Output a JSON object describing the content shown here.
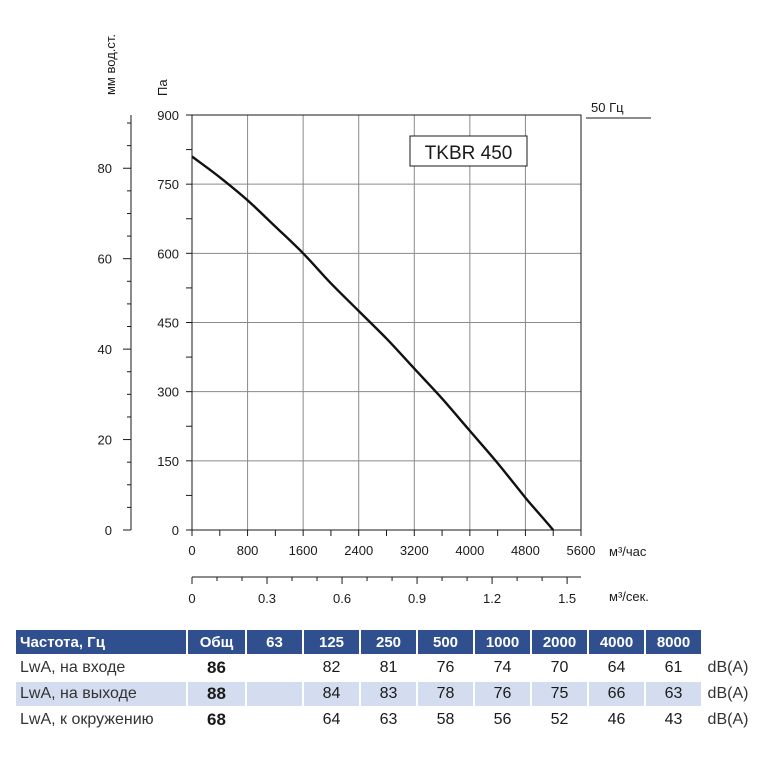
{
  "chart_data": {
    "type": "line",
    "title": "TKBR 450",
    "frequency_label": "50 Гц",
    "y_left_label": "Па",
    "y_secondary_label": "мм вод.ст.",
    "x_label": "м³/час",
    "x2_label": "м³/сек.",
    "xlim": [
      0,
      5600
    ],
    "ylim": [
      0,
      900
    ],
    "x_ticks": [
      "0",
      "800",
      "1600",
      "2400",
      "3200",
      "4000",
      "4800",
      "5600"
    ],
    "y_ticks": [
      "0",
      "150",
      "300",
      "450",
      "600",
      "750",
      "900"
    ],
    "y_secondary_ticks": [
      "0",
      "20",
      "40",
      "60",
      "80"
    ],
    "x2_ticks": [
      "0",
      "0.3",
      "0.6",
      "0.9",
      "1.2",
      "1.5"
    ],
    "grid": true,
    "series": [
      {
        "x": [
          0,
          400,
          800,
          1200,
          1600,
          2000,
          2400,
          2800,
          3200,
          3600,
          4000,
          4400,
          4800,
          5000,
          5200
        ],
        "y": [
          810,
          765,
          715,
          658,
          600,
          535,
          475,
          415,
          350,
          285,
          215,
          145,
          70,
          35,
          0
        ]
      }
    ]
  },
  "noise_table": {
    "headers": [
      "Частота, Гц",
      "Общ",
      "63",
      "125",
      "250",
      "500",
      "1000",
      "2000",
      "4000",
      "8000",
      ""
    ],
    "rows": [
      {
        "label": "LwA, на входе",
        "total": "86",
        "values": [
          "",
          "82",
          "81",
          "76",
          "74",
          "70",
          "64",
          "61"
        ],
        "unit": "dB(A)"
      },
      {
        "label": "LwA, на выходе",
        "total": "88",
        "values": [
          "",
          "84",
          "83",
          "78",
          "76",
          "75",
          "66",
          "63"
        ],
        "unit": "dB(A)"
      },
      {
        "label": "LwA, к окружению",
        "total": "68",
        "values": [
          "",
          "64",
          "63",
          "58",
          "56",
          "52",
          "46",
          "43"
        ],
        "unit": "dB(A)"
      }
    ]
  }
}
